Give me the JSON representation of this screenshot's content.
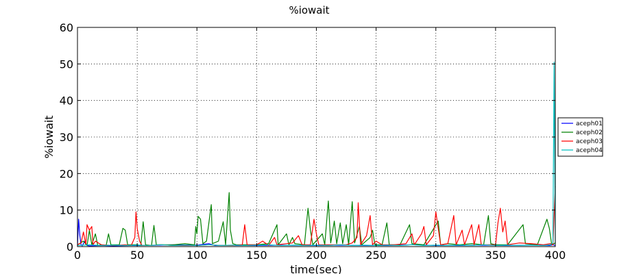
{
  "chart_data": {
    "type": "line",
    "title": "%iowait",
    "xlabel": "time(sec)",
    "ylabel": "%iowait",
    "xlim": [
      0,
      400
    ],
    "ylim": [
      0,
      60
    ],
    "xticks": [
      0,
      50,
      100,
      150,
      200,
      250,
      300,
      350,
      400
    ],
    "yticks": [
      0,
      10,
      20,
      30,
      40,
      50,
      60
    ],
    "grid": true,
    "legend_position": "right",
    "series": [
      {
        "name": "aceph01",
        "color": "#0000ff",
        "points": [
          [
            0,
            0.3
          ],
          [
            1,
            7.5
          ],
          [
            2,
            3.0
          ],
          [
            3,
            0.5
          ],
          [
            4,
            0.2
          ],
          [
            6,
            1.5
          ],
          [
            8,
            0.3
          ],
          [
            10,
            0.2
          ],
          [
            20,
            0.3
          ],
          [
            30,
            0.2
          ],
          [
            45,
            0.3
          ],
          [
            60,
            0.3
          ],
          [
            80,
            0.5
          ],
          [
            100,
            0.4
          ],
          [
            110,
            0.8
          ],
          [
            115,
            0.3
          ],
          [
            130,
            0.3
          ],
          [
            150,
            0.3
          ],
          [
            170,
            0.4
          ],
          [
            190,
            0.3
          ],
          [
            200,
            0.3
          ],
          [
            220,
            0.4
          ],
          [
            240,
            0.3
          ],
          [
            260,
            0.3
          ],
          [
            280,
            0.5
          ],
          [
            300,
            0.3
          ],
          [
            320,
            0.3
          ],
          [
            340,
            0.4
          ],
          [
            360,
            0.3
          ],
          [
            380,
            0.4
          ],
          [
            395,
            0.3
          ],
          [
            398,
            0.5
          ],
          [
            400,
            0.3
          ]
        ]
      },
      {
        "name": "aceph02",
        "color": "#008000",
        "points": [
          [
            0,
            0.5
          ],
          [
            5,
            1.5
          ],
          [
            8,
            0.3
          ],
          [
            10,
            4.5
          ],
          [
            12,
            0.5
          ],
          [
            15,
            3.5
          ],
          [
            17,
            0.3
          ],
          [
            20,
            0.5
          ],
          [
            24,
            0.3
          ],
          [
            26,
            3.5
          ],
          [
            28,
            0.5
          ],
          [
            35,
            0.5
          ],
          [
            38,
            5.0
          ],
          [
            40,
            4.5
          ],
          [
            42,
            0.5
          ],
          [
            50,
            0.5
          ],
          [
            53,
            0.3
          ],
          [
            55,
            6.8
          ],
          [
            57,
            0.5
          ],
          [
            62,
            0.3
          ],
          [
            64,
            5.8
          ],
          [
            66,
            0.5
          ],
          [
            80,
            0.5
          ],
          [
            90,
            0.8
          ],
          [
            98,
            0.5
          ],
          [
            99,
            5.5
          ],
          [
            100,
            3.5
          ],
          [
            101,
            8.3
          ],
          [
            103,
            7.5
          ],
          [
            105,
            0.8
          ],
          [
            108,
            1.5
          ],
          [
            112,
            11.5
          ],
          [
            113,
            0.8
          ],
          [
            118,
            1.5
          ],
          [
            122,
            6.8
          ],
          [
            124,
            0.5
          ],
          [
            127,
            14.8
          ],
          [
            128,
            4.5
          ],
          [
            130,
            0.8
          ],
          [
            133,
            0.5
          ],
          [
            140,
            0.5
          ],
          [
            150,
            0.5
          ],
          [
            160,
            0.8
          ],
          [
            167,
            6.0
          ],
          [
            168,
            0.5
          ],
          [
            175,
            3.5
          ],
          [
            177,
            0.5
          ],
          [
            180,
            2.5
          ],
          [
            182,
            0.8
          ],
          [
            190,
            0.5
          ],
          [
            193,
            10.5
          ],
          [
            195,
            4.5
          ],
          [
            197,
            0.5
          ],
          [
            205,
            3.5
          ],
          [
            207,
            0.5
          ],
          [
            210,
            12.5
          ],
          [
            212,
            1.0
          ],
          [
            215,
            7.0
          ],
          [
            217,
            0.8
          ],
          [
            220,
            6.5
          ],
          [
            222,
            0.8
          ],
          [
            225,
            6.0
          ],
          [
            227,
            0.5
          ],
          [
            230,
            12.3
          ],
          [
            232,
            1.0
          ],
          [
            236,
            5.5
          ],
          [
            238,
            0.5
          ],
          [
            245,
            2.5
          ],
          [
            247,
            4.5
          ],
          [
            249,
            0.5
          ],
          [
            255,
            0.5
          ],
          [
            259,
            6.5
          ],
          [
            261,
            0.5
          ],
          [
            270,
            0.5
          ],
          [
            278,
            6.0
          ],
          [
            280,
            0.8
          ],
          [
            290,
            0.5
          ],
          [
            302,
            7.0
          ],
          [
            304,
            0.5
          ],
          [
            310,
            0.8
          ],
          [
            320,
            0.5
          ],
          [
            330,
            0.8
          ],
          [
            340,
            0.5
          ],
          [
            342,
            4.5
          ],
          [
            344,
            8.5
          ],
          [
            346,
            0.8
          ],
          [
            350,
            0.5
          ],
          [
            360,
            0.5
          ],
          [
            373,
            6.0
          ],
          [
            375,
            0.8
          ],
          [
            385,
            0.5
          ],
          [
            393,
            7.5
          ],
          [
            395,
            5.0
          ],
          [
            397,
            0.5
          ],
          [
            400,
            1.0
          ]
        ]
      },
      {
        "name": "aceph03",
        "color": "#ff0000",
        "points": [
          [
            0,
            0.5
          ],
          [
            3,
            1.0
          ],
          [
            5,
            4.0
          ],
          [
            7,
            0.5
          ],
          [
            8,
            6.0
          ],
          [
            10,
            4.5
          ],
          [
            12,
            5.5
          ],
          [
            13,
            0.5
          ],
          [
            15,
            1.5
          ],
          [
            20,
            0.5
          ],
          [
            30,
            0.3
          ],
          [
            40,
            0.5
          ],
          [
            45,
            0.3
          ],
          [
            48,
            2.5
          ],
          [
            49,
            9.5
          ],
          [
            50,
            5.0
          ],
          [
            52,
            1.5
          ],
          [
            54,
            0.3
          ],
          [
            60,
            0.3
          ],
          [
            70,
            0.5
          ],
          [
            80,
            0.3
          ],
          [
            90,
            0.3
          ],
          [
            100,
            0.3
          ],
          [
            110,
            0.5
          ],
          [
            120,
            0.3
          ],
          [
            130,
            0.3
          ],
          [
            138,
            0.5
          ],
          [
            140,
            6.0
          ],
          [
            142,
            0.5
          ],
          [
            150,
            0.5
          ],
          [
            155,
            1.5
          ],
          [
            160,
            0.3
          ],
          [
            165,
            2.5
          ],
          [
            167,
            0.5
          ],
          [
            180,
            1.0
          ],
          [
            185,
            3.0
          ],
          [
            188,
            0.5
          ],
          [
            195,
            0.5
          ],
          [
            198,
            7.5
          ],
          [
            200,
            3.5
          ],
          [
            202,
            0.5
          ],
          [
            210,
            0.5
          ],
          [
            225,
            0.5
          ],
          [
            230,
            1.0
          ],
          [
            234,
            2.5
          ],
          [
            235,
            12.0
          ],
          [
            237,
            0.5
          ],
          [
            242,
            3.0
          ],
          [
            245,
            8.5
          ],
          [
            247,
            0.5
          ],
          [
            250,
            1.5
          ],
          [
            255,
            0.5
          ],
          [
            265,
            0.5
          ],
          [
            275,
            0.8
          ],
          [
            280,
            3.5
          ],
          [
            282,
            0.5
          ],
          [
            288,
            3.5
          ],
          [
            290,
            5.5
          ],
          [
            292,
            0.5
          ],
          [
            298,
            3.0
          ],
          [
            300,
            9.5
          ],
          [
            302,
            5.0
          ],
          [
            304,
            0.5
          ],
          [
            310,
            0.8
          ],
          [
            315,
            8.5
          ],
          [
            317,
            0.5
          ],
          [
            322,
            4.5
          ],
          [
            324,
            0.5
          ],
          [
            330,
            6.0
          ],
          [
            332,
            0.5
          ],
          [
            336,
            6.0
          ],
          [
            338,
            0.5
          ],
          [
            350,
            0.5
          ],
          [
            352,
            6.5
          ],
          [
            354,
            10.5
          ],
          [
            356,
            4.0
          ],
          [
            358,
            7.0
          ],
          [
            360,
            0.5
          ],
          [
            370,
            1.0
          ],
          [
            380,
            0.8
          ],
          [
            390,
            0.5
          ],
          [
            396,
            0.8
          ],
          [
            398,
            0.5
          ],
          [
            400,
            16.5
          ]
        ]
      },
      {
        "name": "aceph04",
        "color": "#00bfbf",
        "points": [
          [
            0,
            0.3
          ],
          [
            10,
            0.5
          ],
          [
            20,
            0.3
          ],
          [
            30,
            0.4
          ],
          [
            40,
            0.3
          ],
          [
            50,
            0.4
          ],
          [
            60,
            0.3
          ],
          [
            70,
            0.5
          ],
          [
            80,
            0.3
          ],
          [
            90,
            0.4
          ],
          [
            100,
            0.3
          ],
          [
            110,
            0.5
          ],
          [
            120,
            0.3
          ],
          [
            130,
            0.4
          ],
          [
            140,
            0.3
          ],
          [
            150,
            0.4
          ],
          [
            160,
            0.5
          ],
          [
            170,
            0.3
          ],
          [
            180,
            0.4
          ],
          [
            190,
            0.3
          ],
          [
            200,
            0.4
          ],
          [
            210,
            0.3
          ],
          [
            220,
            0.5
          ],
          [
            230,
            0.3
          ],
          [
            240,
            0.4
          ],
          [
            250,
            0.3
          ],
          [
            260,
            0.4
          ],
          [
            270,
            0.3
          ],
          [
            280,
            0.5
          ],
          [
            290,
            0.3
          ],
          [
            300,
            0.4
          ],
          [
            310,
            0.3
          ],
          [
            320,
            0.4
          ],
          [
            330,
            0.3
          ],
          [
            340,
            0.5
          ],
          [
            350,
            0.3
          ],
          [
            360,
            0.4
          ],
          [
            370,
            0.3
          ],
          [
            380,
            0.4
          ],
          [
            390,
            0.3
          ],
          [
            396,
            0.5
          ],
          [
            398,
            1.0
          ],
          [
            399,
            50.5
          ],
          [
            400,
            1.0
          ]
        ]
      }
    ]
  }
}
